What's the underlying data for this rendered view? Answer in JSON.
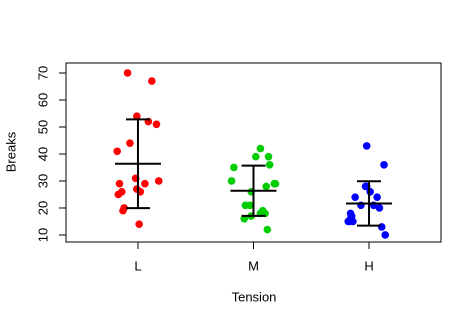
{
  "chart_data": {
    "type": "scatter",
    "x_label": "Tension",
    "y_label": "Breaks",
    "xlim": [
      0.377,
      3.623
    ],
    "xticks": [
      {
        "value": 1,
        "label": "L"
      },
      {
        "value": 2,
        "label": "M"
      },
      {
        "value": 3,
        "label": "H"
      }
    ],
    "ylim": [
      7.4,
      73.7
    ],
    "yticks": [
      10,
      20,
      30,
      40,
      50,
      60,
      70
    ],
    "series": [
      {
        "name": "L",
        "color": "#ff0000",
        "x": [
          1.02,
          1.18,
          0.99,
          0.83,
          0.91,
          1.09,
          1.16,
          0.86,
          1.12,
          0.99,
          1.01,
          0.84,
          0.87,
          1.06,
          0.98,
          0.82,
          0.88,
          0.93
        ],
        "values": [
          26,
          30,
          54,
          25,
          70,
          52,
          51,
          26,
          67,
          27,
          14,
          29,
          19,
          29,
          31,
          41,
          20,
          44
        ]
      },
      {
        "name": "M",
        "color": "#00cd00",
        "x": [
          2.06,
          1.97,
          2.18,
          1.98,
          2.12,
          2.1,
          1.83,
          1.81,
          2.14,
          2.06,
          1.98,
          2.08,
          1.92,
          2.02,
          2.11,
          1.93,
          2.13,
          2.19
        ],
        "values": [
          18,
          21,
          29,
          17,
          12,
          18,
          35,
          30,
          36,
          42,
          26,
          19,
          16,
          39,
          28,
          21,
          39,
          29
        ]
      },
      {
        "name": "H",
        "color": "#0000ff",
        "x": [
          3.13,
          2.93,
          3.07,
          2.84,
          3.14,
          2.98,
          2.98,
          2.83,
          3.01,
          3.09,
          3.04,
          2.88,
          2.85,
          3.11,
          2.82,
          2.86,
          2.84,
          2.97
        ],
        "values": [
          36,
          21,
          24,
          18,
          10,
          43,
          28,
          15,
          26,
          20,
          21,
          24,
          17,
          13,
          15,
          15,
          16,
          28
        ]
      }
    ],
    "error_bars": {
      "color": "#000000",
      "x": [
        1,
        2,
        3
      ],
      "values": [
        36.39,
        26.39,
        21.67
      ],
      "errors": [
        16.45,
        9.3,
        8.21
      ]
    }
  }
}
